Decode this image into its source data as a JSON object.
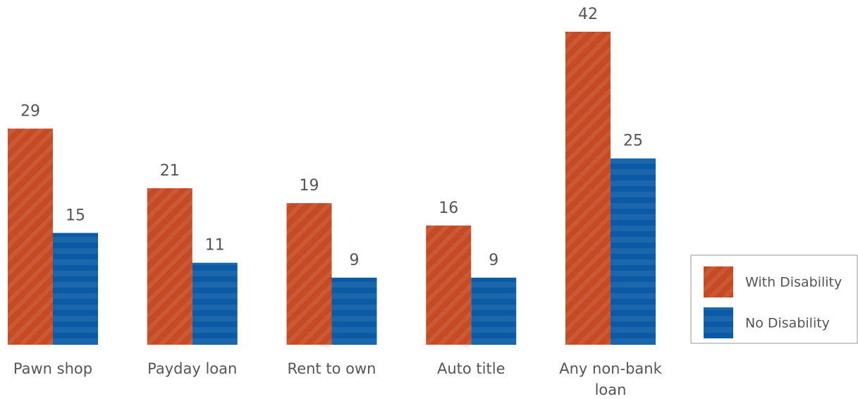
{
  "chart_data": {
    "type": "bar",
    "categories": [
      "Pawn shop",
      "Payday loan",
      "Rent to own",
      "Auto title",
      "Any non-bank loan"
    ],
    "series": [
      {
        "name": "With Disability",
        "color": "#c64b25",
        "values": [
          29,
          21,
          19,
          16,
          42
        ]
      },
      {
        "name": "No Disability",
        "color": "#0b5aa6",
        "values": [
          15,
          11,
          9,
          9,
          25
        ]
      }
    ],
    "legend": "right"
  }
}
